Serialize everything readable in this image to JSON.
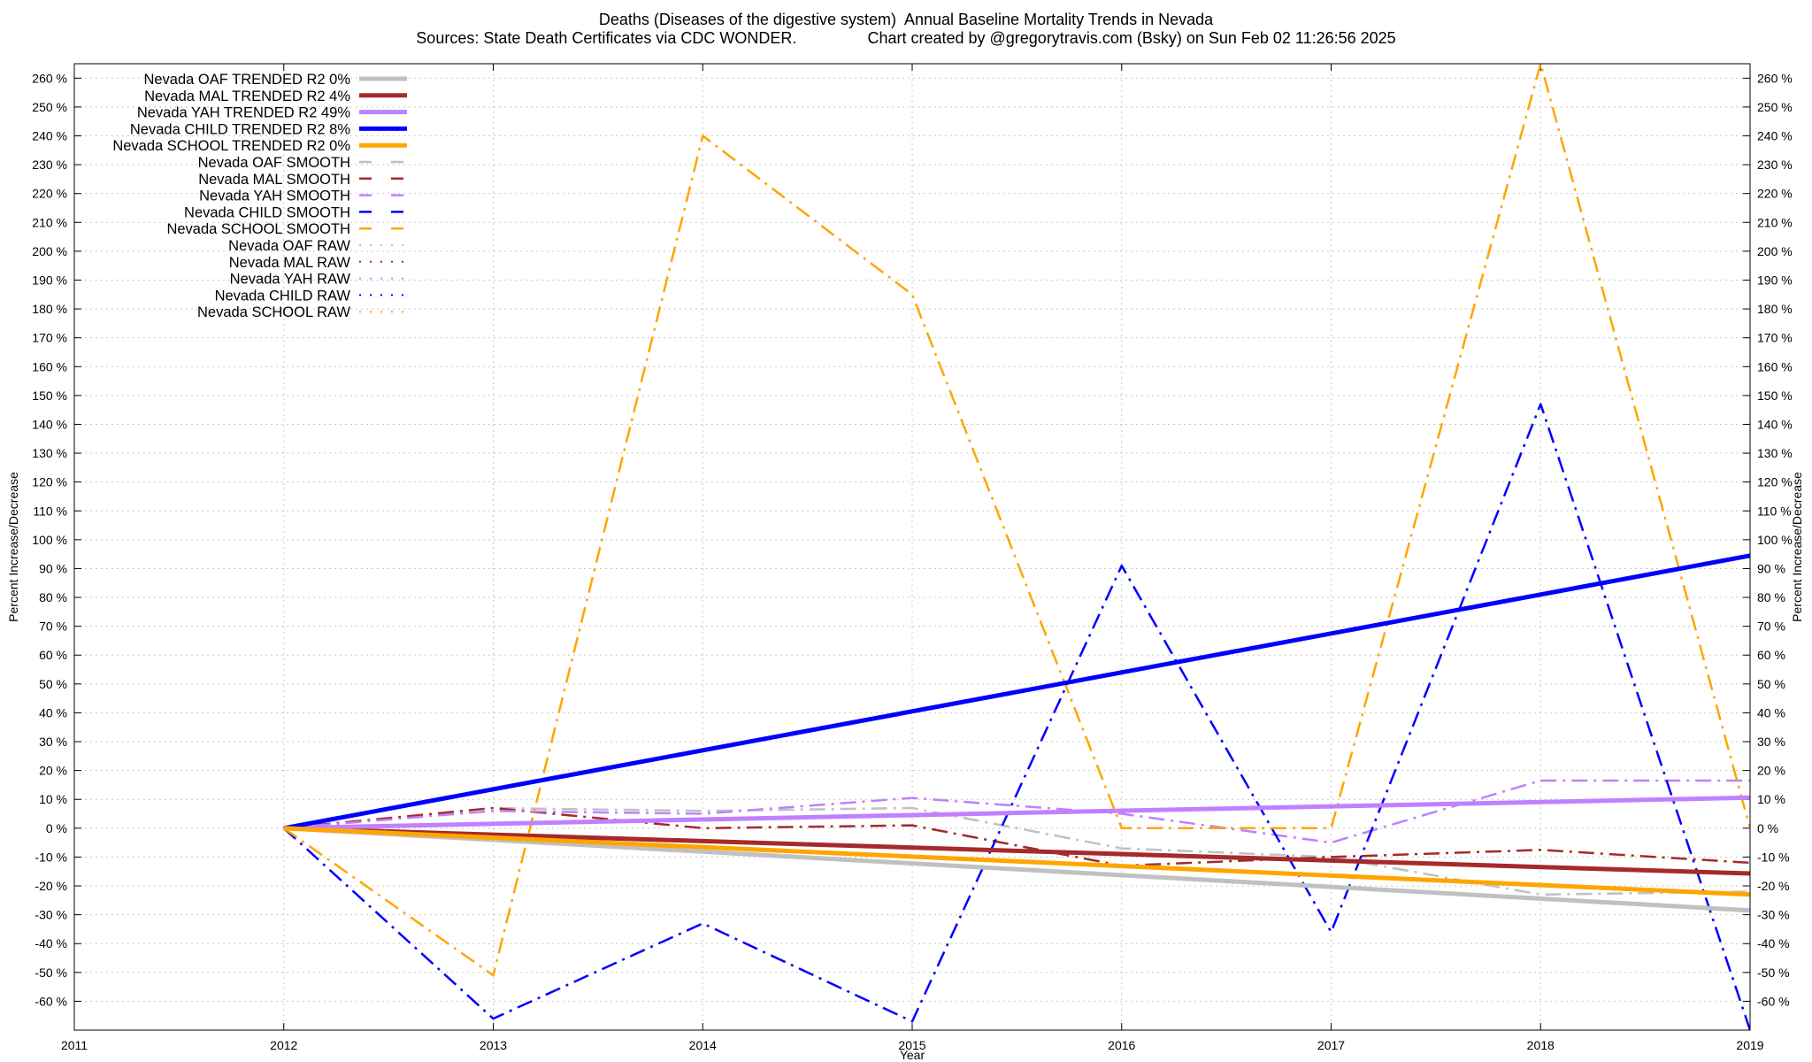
{
  "title_line1": "Deaths (Diseases of the digestive system)  Annual Baseline Mortality Trends in Nevada",
  "title_line2": "Sources: State Death Certificates via CDC WONDER.                Chart created by @gregorytravis.com (Bsky) on Sun Feb 02 11:26:56 2025",
  "chart_data": {
    "type": "line",
    "xlabel": "Year",
    "ylabel": "Percent Increase/Decrease",
    "ylabel_right": "Percent Increase/Decrease",
    "xlim": [
      2011,
      2019
    ],
    "ylim": [
      -70,
      265
    ],
    "x_ticks": [
      2011,
      2012,
      2013,
      2014,
      2015,
      2016,
      2017,
      2018,
      2019
    ],
    "y_ticks": [
      -60,
      -50,
      -40,
      -30,
      -20,
      -10,
      0,
      10,
      20,
      30,
      40,
      50,
      60,
      70,
      80,
      90,
      100,
      110,
      120,
      130,
      140,
      150,
      160,
      170,
      180,
      190,
      200,
      210,
      220,
      230,
      240,
      250,
      260
    ],
    "y_tick_suffix": " %",
    "grid": true,
    "legend_position": "top-left",
    "series": [
      {
        "name": "Nevada OAF TRENDED R2   0%",
        "color": "#c0c0c0",
        "style": "solid",
        "width": 5,
        "x": [
          2012,
          2019
        ],
        "y": [
          0,
          -28.5
        ]
      },
      {
        "name": "Nevada MAL TRENDED R2   4%",
        "color": "#a52a2a",
        "style": "solid",
        "width": 5,
        "x": [
          2012,
          2019
        ],
        "y": [
          0,
          -15.7
        ]
      },
      {
        "name": "Nevada YAH TRENDED R2  49%",
        "color": "#c080ff",
        "style": "solid",
        "width": 5,
        "x": [
          2012,
          2019
        ],
        "y": [
          0,
          10.6
        ]
      },
      {
        "name": "Nevada CHILD TRENDED R2   8%",
        "color": "#0000ff",
        "style": "solid",
        "width": 5,
        "x": [
          2012,
          2019
        ],
        "y": [
          0,
          94.5
        ]
      },
      {
        "name": "Nevada SCHOOL TRENDED R2   0%",
        "color": "#ffa500",
        "style": "solid",
        "width": 5,
        "x": [
          2012,
          2019
        ],
        "y": [
          0,
          -23
        ]
      },
      {
        "name": "Nevada OAF SMOOTH",
        "color": "#c0c0c0",
        "style": "dashdot",
        "width": 2.5,
        "x": [
          2012,
          2013,
          2014,
          2015,
          2016,
          2017,
          2018,
          2019
        ],
        "y": [
          0,
          7,
          6,
          7,
          -7,
          -10,
          -23,
          -22
        ]
      },
      {
        "name": "Nevada MAL SMOOTH",
        "color": "#a52a2a",
        "style": "dashdot",
        "width": 2.5,
        "x": [
          2012,
          2013,
          2014,
          2015,
          2016,
          2017,
          2018,
          2019
        ],
        "y": [
          0,
          7,
          0,
          1,
          -13,
          -10,
          -7.5,
          -12
        ]
      },
      {
        "name": "Nevada YAH SMOOTH",
        "color": "#c080ff",
        "style": "dashdot",
        "width": 2.5,
        "x": [
          2012,
          2013,
          2014,
          2015,
          2016,
          2017,
          2018,
          2019
        ],
        "y": [
          0,
          6,
          5,
          10.5,
          5,
          -5,
          16.5,
          16.5
        ]
      },
      {
        "name": "Nevada CHILD SMOOTH",
        "color": "#0000ff",
        "style": "dashdot",
        "width": 2.5,
        "x": [
          2012,
          2013,
          2014,
          2015,
          2016,
          2017,
          2018,
          2019
        ],
        "y": [
          0,
          -66,
          -33,
          -67,
          91,
          -36,
          147,
          -70
        ]
      },
      {
        "name": "Nevada SCHOOL SMOOTH",
        "color": "#ffa500",
        "style": "dashdot",
        "width": 2.5,
        "x": [
          2012,
          2013,
          2014,
          2015,
          2016,
          2017,
          2018,
          2019
        ],
        "y": [
          0,
          -51,
          240,
          185,
          0,
          0,
          265,
          0
        ]
      },
      {
        "name": "Nevada OAF RAW",
        "color": "#c0c0c0",
        "style": "dotted",
        "width": 2,
        "x": [],
        "y": []
      },
      {
        "name": "Nevada MAL RAW",
        "color": "#a52a2a",
        "style": "dotted",
        "width": 2,
        "x": [],
        "y": []
      },
      {
        "name": "Nevada YAH RAW",
        "color": "#c080ff",
        "style": "dotted",
        "width": 2,
        "x": [],
        "y": []
      },
      {
        "name": "Nevada CHILD RAW",
        "color": "#0000ff",
        "style": "dotted",
        "width": 2,
        "x": [],
        "y": []
      },
      {
        "name": "Nevada SCHOOL RAW",
        "color": "#ffa500",
        "style": "dotted",
        "width": 2,
        "x": [],
        "y": []
      }
    ],
    "draw_order": [
      5,
      6,
      7,
      8,
      9,
      0,
      1,
      2,
      3,
      4
    ]
  }
}
